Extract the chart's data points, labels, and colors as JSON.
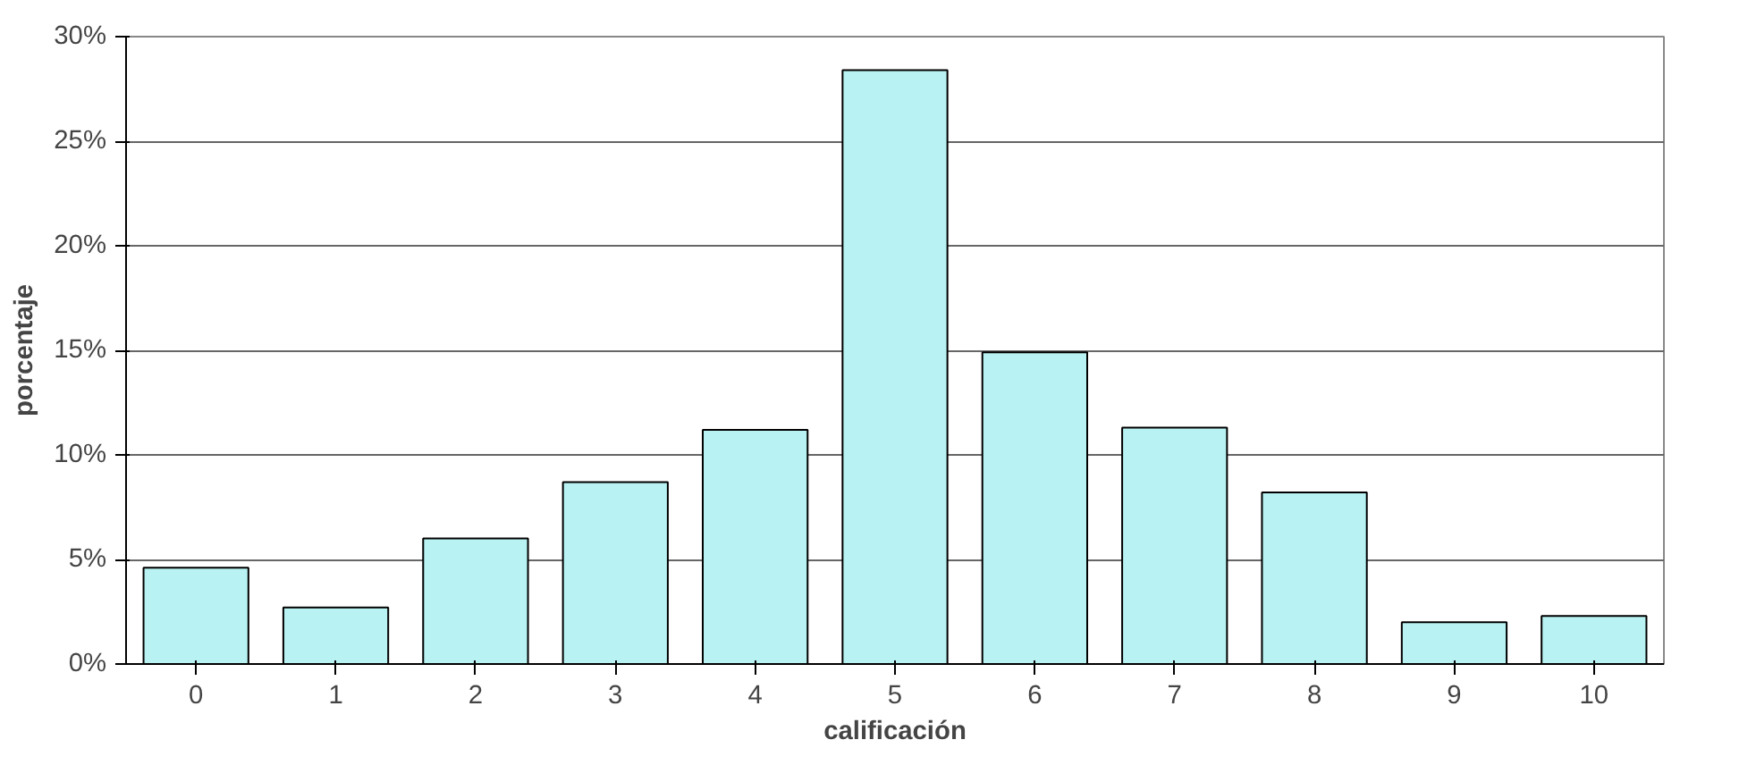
{
  "chart_data": {
    "type": "bar",
    "xlabel": "calificación",
    "ylabel": "porcentaje",
    "categories": [
      "0",
      "1",
      "2",
      "3",
      "4",
      "5",
      "6",
      "7",
      "8",
      "9",
      "10"
    ],
    "values": [
      4.6,
      2.7,
      6.0,
      8.7,
      11.2,
      28.4,
      14.9,
      11.3,
      8.2,
      2.0,
      2.3
    ],
    "color": "#b8f2f2",
    "ylim": [
      0,
      30
    ],
    "yticks": [
      {
        "value": 0,
        "label": "0%"
      },
      {
        "value": 5,
        "label": "5%"
      },
      {
        "value": 10,
        "label": "10%"
      },
      {
        "value": 15,
        "label": "15%"
      },
      {
        "value": 20,
        "label": "20%"
      },
      {
        "value": 25,
        "label": "25%"
      },
      {
        "value": 30,
        "label": "30%"
      }
    ],
    "grid": "y"
  }
}
